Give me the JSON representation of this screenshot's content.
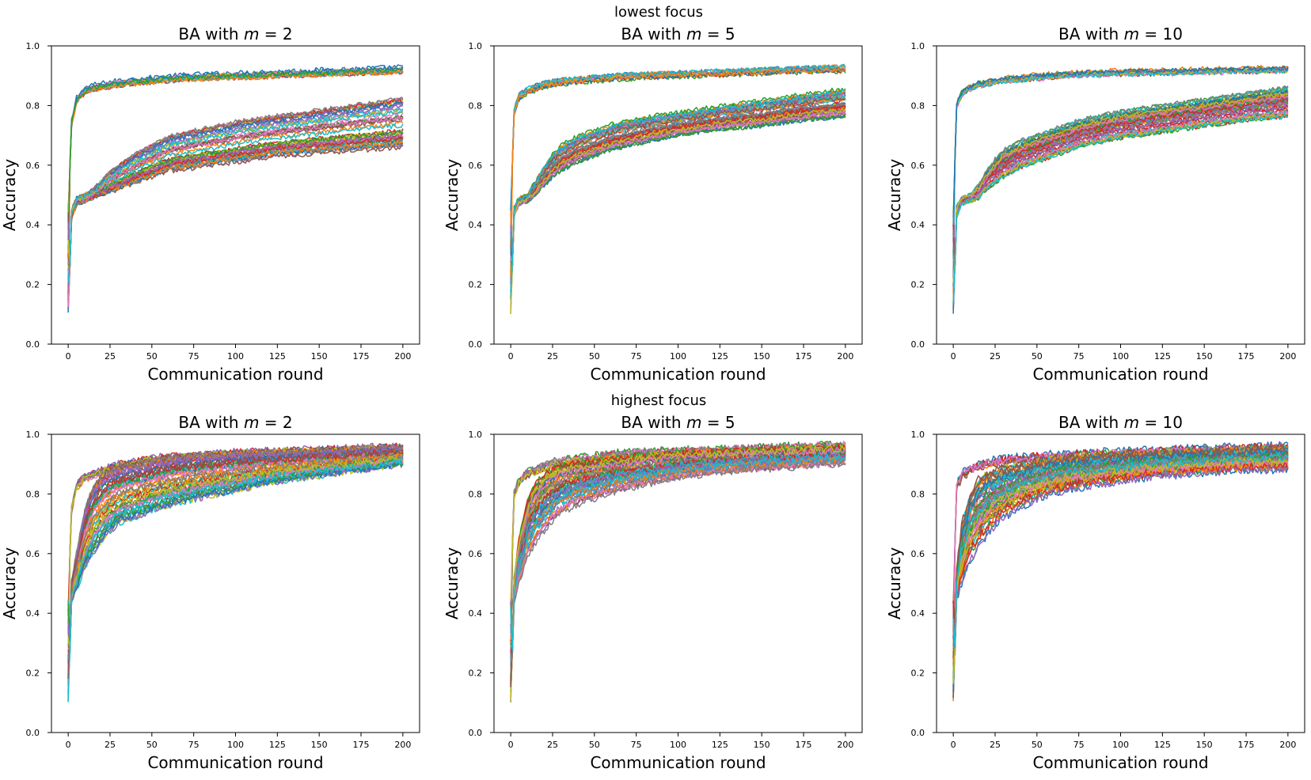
{
  "figure": {
    "row_titles": [
      "lowest focus",
      "highest focus"
    ]
  },
  "palette": [
    "#1f77b4",
    "#ff7f0e",
    "#2ca02c",
    "#d62728",
    "#9467bd",
    "#8c564b",
    "#e377c2",
    "#7f7f7f",
    "#bcbd22",
    "#17becf"
  ],
  "chart_data": [
    {
      "type": "line",
      "row": 0,
      "col": 0,
      "title_prefix": "BA with ",
      "title_var": "m",
      "title_eq": " = ",
      "title_val": "2",
      "xlabel": "Communication round",
      "ylabel": "Accuracy",
      "xlim": [
        0,
        200
      ],
      "ylim": [
        0,
        1.0
      ],
      "xticks": [
        "0",
        "25",
        "50",
        "75",
        "100",
        "125",
        "150",
        "175",
        "200"
      ],
      "yticks": [
        "0.0",
        "0.2",
        "0.4",
        "0.6",
        "0.8",
        "1.0"
      ],
      "x": [
        0,
        2,
        5,
        10,
        15,
        20,
        25,
        30,
        40,
        50,
        60,
        75,
        100,
        125,
        150,
        175,
        200
      ],
      "series_count": 60,
      "band_top": [
        0.45,
        0.74,
        0.82,
        0.85,
        0.86,
        0.865,
        0.87,
        0.875,
        0.88,
        0.885,
        0.89,
        0.895,
        0.9,
        0.905,
        0.91,
        0.915,
        0.92
      ],
      "band_low": [
        0.1,
        0.44,
        0.48,
        0.49,
        0.5,
        0.51,
        0.53,
        0.55,
        0.58,
        0.6,
        0.62,
        0.64,
        0.67,
        0.69,
        0.71,
        0.73,
        0.74
      ],
      "band_low_min": [
        0.1,
        0.42,
        0.47,
        0.48,
        0.49,
        0.5,
        0.51,
        0.52,
        0.54,
        0.56,
        0.58,
        0.59,
        0.61,
        0.63,
        0.64,
        0.65,
        0.66
      ],
      "band_low_max": [
        0.1,
        0.45,
        0.49,
        0.5,
        0.52,
        0.55,
        0.58,
        0.6,
        0.64,
        0.67,
        0.7,
        0.72,
        0.75,
        0.77,
        0.79,
        0.81,
        0.83
      ],
      "top_fraction": 0.22,
      "noise": 0.008
    },
    {
      "type": "line",
      "row": 0,
      "col": 1,
      "title_prefix": "BA with ",
      "title_var": "m",
      "title_eq": " = ",
      "title_val": "5",
      "xlabel": "Communication round",
      "ylabel": "Accuracy",
      "xlim": [
        0,
        200
      ],
      "ylim": [
        0,
        1.0
      ],
      "xticks": [
        "0",
        "25",
        "50",
        "75",
        "100",
        "125",
        "150",
        "175",
        "200"
      ],
      "yticks": [
        "0.0",
        "0.2",
        "0.4",
        "0.6",
        "0.8",
        "1.0"
      ],
      "x": [
        0,
        2,
        5,
        10,
        15,
        20,
        25,
        30,
        40,
        50,
        60,
        75,
        100,
        125,
        150,
        175,
        200
      ],
      "series_count": 60,
      "band_top": [
        0.45,
        0.78,
        0.83,
        0.85,
        0.86,
        0.87,
        0.875,
        0.88,
        0.885,
        0.89,
        0.895,
        0.9,
        0.905,
        0.91,
        0.915,
        0.92,
        0.925
      ],
      "band_low": [
        0.1,
        0.45,
        0.48,
        0.49,
        0.52,
        0.56,
        0.6,
        0.62,
        0.65,
        0.67,
        0.69,
        0.71,
        0.74,
        0.76,
        0.78,
        0.8,
        0.81
      ],
      "band_low_min": [
        0.1,
        0.43,
        0.47,
        0.48,
        0.5,
        0.53,
        0.56,
        0.58,
        0.61,
        0.63,
        0.65,
        0.67,
        0.7,
        0.72,
        0.73,
        0.75,
        0.76
      ],
      "band_low_max": [
        0.1,
        0.46,
        0.49,
        0.5,
        0.55,
        0.6,
        0.64,
        0.67,
        0.7,
        0.72,
        0.74,
        0.76,
        0.78,
        0.8,
        0.82,
        0.84,
        0.86
      ],
      "top_fraction": 0.2,
      "noise": 0.008
    },
    {
      "type": "line",
      "row": 0,
      "col": 2,
      "title_prefix": "BA with ",
      "title_var": "m",
      "title_eq": " = ",
      "title_val": "10",
      "xlabel": "Communication round",
      "ylabel": "Accuracy",
      "xlim": [
        0,
        200
      ],
      "ylim": [
        0,
        1.0
      ],
      "xticks": [
        "0",
        "25",
        "50",
        "75",
        "100",
        "125",
        "150",
        "175",
        "200"
      ],
      "yticks": [
        "0.0",
        "0.2",
        "0.4",
        "0.6",
        "0.8",
        "1.0"
      ],
      "x": [
        0,
        2,
        5,
        10,
        15,
        20,
        25,
        30,
        40,
        50,
        60,
        75,
        100,
        125,
        150,
        175,
        200
      ],
      "series_count": 60,
      "band_top": [
        0.45,
        0.8,
        0.84,
        0.86,
        0.87,
        0.875,
        0.88,
        0.885,
        0.89,
        0.895,
        0.9,
        0.905,
        0.91,
        0.912,
        0.915,
        0.918,
        0.92
      ],
      "band_low": [
        0.1,
        0.45,
        0.48,
        0.49,
        0.5,
        0.54,
        0.57,
        0.6,
        0.63,
        0.65,
        0.67,
        0.7,
        0.73,
        0.75,
        0.77,
        0.79,
        0.8
      ],
      "band_low_min": [
        0.1,
        0.43,
        0.47,
        0.48,
        0.49,
        0.52,
        0.54,
        0.56,
        0.59,
        0.61,
        0.63,
        0.66,
        0.69,
        0.71,
        0.73,
        0.75,
        0.76
      ],
      "band_low_max": [
        0.1,
        0.46,
        0.49,
        0.5,
        0.53,
        0.58,
        0.62,
        0.65,
        0.68,
        0.7,
        0.72,
        0.75,
        0.78,
        0.8,
        0.82,
        0.84,
        0.86
      ],
      "top_fraction": 0.18,
      "noise": 0.008
    },
    {
      "type": "line",
      "row": 1,
      "col": 0,
      "title_prefix": "BA with ",
      "title_var": "m",
      "title_eq": " = ",
      "title_val": "2",
      "xlabel": "Communication round",
      "ylabel": "Accuracy",
      "xlim": [
        0,
        200
      ],
      "ylim": [
        0,
        1.0
      ],
      "xticks": [
        "0",
        "25",
        "50",
        "75",
        "100",
        "125",
        "150",
        "175",
        "200"
      ],
      "yticks": [
        "0.0",
        "0.2",
        "0.4",
        "0.6",
        "0.8",
        "1.0"
      ],
      "x": [
        0,
        2,
        5,
        10,
        15,
        20,
        25,
        30,
        40,
        50,
        60,
        75,
        100,
        125,
        150,
        175,
        200
      ],
      "series_count": 60,
      "band_top": [
        0.45,
        0.75,
        0.83,
        0.86,
        0.87,
        0.88,
        0.89,
        0.9,
        0.91,
        0.92,
        0.925,
        0.93,
        0.94,
        0.945,
        0.95,
        0.955,
        0.96
      ],
      "band_low": [
        0.1,
        0.45,
        0.5,
        0.6,
        0.66,
        0.7,
        0.73,
        0.76,
        0.8,
        0.83,
        0.85,
        0.87,
        0.89,
        0.905,
        0.915,
        0.925,
        0.935
      ],
      "band_low_min": [
        0.1,
        0.44,
        0.48,
        0.55,
        0.6,
        0.64,
        0.67,
        0.7,
        0.72,
        0.74,
        0.76,
        0.78,
        0.81,
        0.84,
        0.86,
        0.88,
        0.9
      ],
      "band_low_max": [
        0.1,
        0.5,
        0.6,
        0.75,
        0.82,
        0.86,
        0.88,
        0.89,
        0.9,
        0.91,
        0.92,
        0.93,
        0.935,
        0.94,
        0.945,
        0.95,
        0.955
      ],
      "top_fraction": 0.15,
      "noise": 0.012
    },
    {
      "type": "line",
      "row": 1,
      "col": 1,
      "title_prefix": "BA with ",
      "title_var": "m",
      "title_eq": " = ",
      "title_val": "5",
      "xlabel": "Communication round",
      "ylabel": "Accuracy",
      "xlim": [
        0,
        200
      ],
      "ylim": [
        0,
        1.0
      ],
      "xticks": [
        "0",
        "25",
        "50",
        "75",
        "100",
        "125",
        "150",
        "175",
        "200"
      ],
      "yticks": [
        "0.0",
        "0.2",
        "0.4",
        "0.6",
        "0.8",
        "1.0"
      ],
      "x": [
        0,
        2,
        5,
        10,
        15,
        20,
        25,
        30,
        40,
        50,
        60,
        75,
        100,
        125,
        150,
        175,
        200
      ],
      "series_count": 60,
      "band_top": [
        0.45,
        0.8,
        0.84,
        0.87,
        0.88,
        0.89,
        0.9,
        0.91,
        0.915,
        0.92,
        0.93,
        0.935,
        0.94,
        0.945,
        0.95,
        0.955,
        0.96
      ],
      "band_low": [
        0.1,
        0.45,
        0.55,
        0.64,
        0.7,
        0.74,
        0.77,
        0.79,
        0.82,
        0.84,
        0.86,
        0.88,
        0.895,
        0.91,
        0.92,
        0.925,
        0.93
      ],
      "band_low_min": [
        0.1,
        0.44,
        0.5,
        0.58,
        0.63,
        0.67,
        0.7,
        0.73,
        0.76,
        0.78,
        0.8,
        0.82,
        0.85,
        0.87,
        0.88,
        0.89,
        0.9
      ],
      "band_low_max": [
        0.1,
        0.52,
        0.65,
        0.78,
        0.84,
        0.87,
        0.89,
        0.9,
        0.91,
        0.915,
        0.92,
        0.93,
        0.94,
        0.945,
        0.95,
        0.955,
        0.96
      ],
      "top_fraction": 0.15,
      "noise": 0.012
    },
    {
      "type": "line",
      "row": 1,
      "col": 2,
      "title_prefix": "BA with ",
      "title_var": "m",
      "title_eq": " = ",
      "title_val": "10",
      "xlabel": "Communication round",
      "ylabel": "Accuracy",
      "xlim": [
        0,
        200
      ],
      "ylim": [
        0,
        1.0
      ],
      "xticks": [
        "0",
        "25",
        "50",
        "75",
        "100",
        "125",
        "150",
        "175",
        "200"
      ],
      "yticks": [
        "0.0",
        "0.2",
        "0.4",
        "0.6",
        "0.8",
        "1.0"
      ],
      "x": [
        0,
        2,
        5,
        10,
        15,
        20,
        25,
        30,
        40,
        50,
        60,
        75,
        100,
        125,
        150,
        175,
        200
      ],
      "series_count": 60,
      "band_top": [
        0.45,
        0.82,
        0.86,
        0.88,
        0.89,
        0.9,
        0.905,
        0.91,
        0.915,
        0.92,
        0.925,
        0.93,
        0.935,
        0.94,
        0.945,
        0.95,
        0.955
      ],
      "band_low": [
        0.1,
        0.45,
        0.55,
        0.64,
        0.69,
        0.72,
        0.75,
        0.77,
        0.8,
        0.82,
        0.84,
        0.86,
        0.88,
        0.895,
        0.905,
        0.915,
        0.92
      ],
      "band_low_min": [
        0.1,
        0.44,
        0.5,
        0.57,
        0.62,
        0.66,
        0.69,
        0.72,
        0.75,
        0.78,
        0.8,
        0.82,
        0.84,
        0.86,
        0.87,
        0.88,
        0.88
      ],
      "band_low_max": [
        0.1,
        0.55,
        0.7,
        0.8,
        0.85,
        0.87,
        0.88,
        0.89,
        0.9,
        0.91,
        0.92,
        0.93,
        0.935,
        0.94,
        0.945,
        0.95,
        0.955
      ],
      "top_fraction": 0.12,
      "noise": 0.014
    }
  ]
}
